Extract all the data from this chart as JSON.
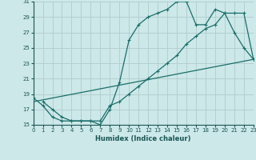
{
  "xlabel": "Humidex (Indice chaleur)",
  "bg_color": "#cce8e8",
  "grid_color": "#b0cccc",
  "line_color": "#1a6e6a",
  "xlim": [
    0,
    23
  ],
  "ylim": [
    15,
    31
  ],
  "xticks": [
    0,
    1,
    2,
    3,
    4,
    5,
    6,
    7,
    8,
    9,
    10,
    11,
    12,
    13,
    14,
    15,
    16,
    17,
    18,
    19,
    20,
    21,
    22,
    23
  ],
  "yticks": [
    15,
    17,
    19,
    21,
    23,
    25,
    27,
    29,
    31
  ],
  "line1_x": [
    1,
    2,
    3,
    4,
    5,
    6,
    7,
    8,
    9,
    10,
    11,
    12,
    13,
    14,
    15,
    16,
    17,
    18,
    19,
    20,
    21,
    22,
    23
  ],
  "line1_y": [
    18.0,
    17.0,
    16.0,
    15.5,
    15.5,
    15.5,
    15.0,
    17.0,
    20.5,
    26.0,
    28.0,
    29.0,
    29.5,
    30.0,
    31.0,
    31.0,
    28.0,
    28.0,
    30.0,
    29.5,
    27.0,
    25.0,
    23.5
  ],
  "line2_x": [
    0,
    1,
    2,
    3,
    4,
    5,
    6,
    7,
    8,
    9,
    10,
    11,
    12,
    13,
    14,
    15,
    16,
    17,
    18,
    19,
    20,
    21,
    22,
    23
  ],
  "line2_y": [
    18.5,
    17.5,
    16.0,
    15.5,
    15.5,
    15.5,
    15.5,
    15.5,
    17.5,
    18.0,
    19.0,
    20.0,
    21.0,
    22.0,
    23.0,
    24.0,
    25.5,
    26.5,
    27.5,
    28.0,
    29.5,
    29.5,
    29.5,
    23.5
  ],
  "line3_x": [
    0,
    23
  ],
  "line3_y": [
    18.0,
    23.5
  ]
}
